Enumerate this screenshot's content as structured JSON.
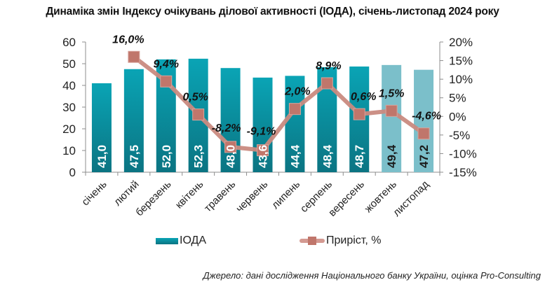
{
  "chart_data": {
    "type": "bar+line",
    "title": "Динаміка змін Індексу очікувань ділової активності (ІОДА), січень-листопад 2024 року",
    "categories": [
      "січень",
      "лютий",
      "березень",
      "квітень",
      "травень",
      "червень",
      "липень",
      "серпень",
      "вересень",
      "жовтень",
      "листопад"
    ],
    "series": [
      {
        "name": "ІОДА",
        "type": "bar",
        "axis": "left",
        "values": [
          41.0,
          47.5,
          52.0,
          52.3,
          48.0,
          43.6,
          44.4,
          48.4,
          48.7,
          49.4,
          47.2
        ],
        "labels": [
          "41,0",
          "47,5",
          "52,0",
          "52,3",
          "48,0",
          "43,6",
          "44,4",
          "48,4",
          "48,7",
          "49,4",
          "47,2"
        ],
        "highlighted_light": [
          false,
          false,
          false,
          false,
          false,
          false,
          false,
          false,
          false,
          true,
          true
        ]
      },
      {
        "name": "Приріст, %",
        "type": "line",
        "axis": "right",
        "values": [
          null,
          16.0,
          9.4,
          0.5,
          -8.2,
          -9.1,
          2.0,
          8.9,
          0.6,
          1.5,
          -4.6
        ],
        "labels": [
          null,
          "16,0%",
          "9,4%",
          "0,5%",
          "-8,2%",
          "-9,1%",
          "2,0%",
          "8,9%",
          "0,6%",
          "1,5%",
          "-4,6%"
        ]
      }
    ],
    "y_left": {
      "ylim": [
        0,
        60
      ],
      "ticks": [
        0,
        10,
        20,
        30,
        40,
        50,
        60
      ],
      "tick_labels": [
        "0",
        "10",
        "20",
        "30",
        "40",
        "50",
        "60"
      ]
    },
    "y_right": {
      "ylim": [
        -15,
        20
      ],
      "ticks": [
        -15,
        -10,
        -5,
        0,
        5,
        10,
        15,
        20
      ],
      "tick_labels": [
        "-15%",
        "-10%",
        "-5%",
        "0%",
        "5%",
        "10%",
        "15%",
        "20%"
      ]
    },
    "grid": false,
    "legend": {
      "placement": "bottom",
      "items": [
        "ІОДА",
        "Приріст, %"
      ]
    },
    "colors": {
      "bar_dark_top": "#0aa3b4",
      "bar_dark_bottom": "#0b7584",
      "bar_light": "#7bbfca",
      "line": "#c98a80",
      "marker": "#c0766b"
    }
  },
  "source": "Джерело: дані дослідження Національного банку України, оцінка Pro-Consulting"
}
